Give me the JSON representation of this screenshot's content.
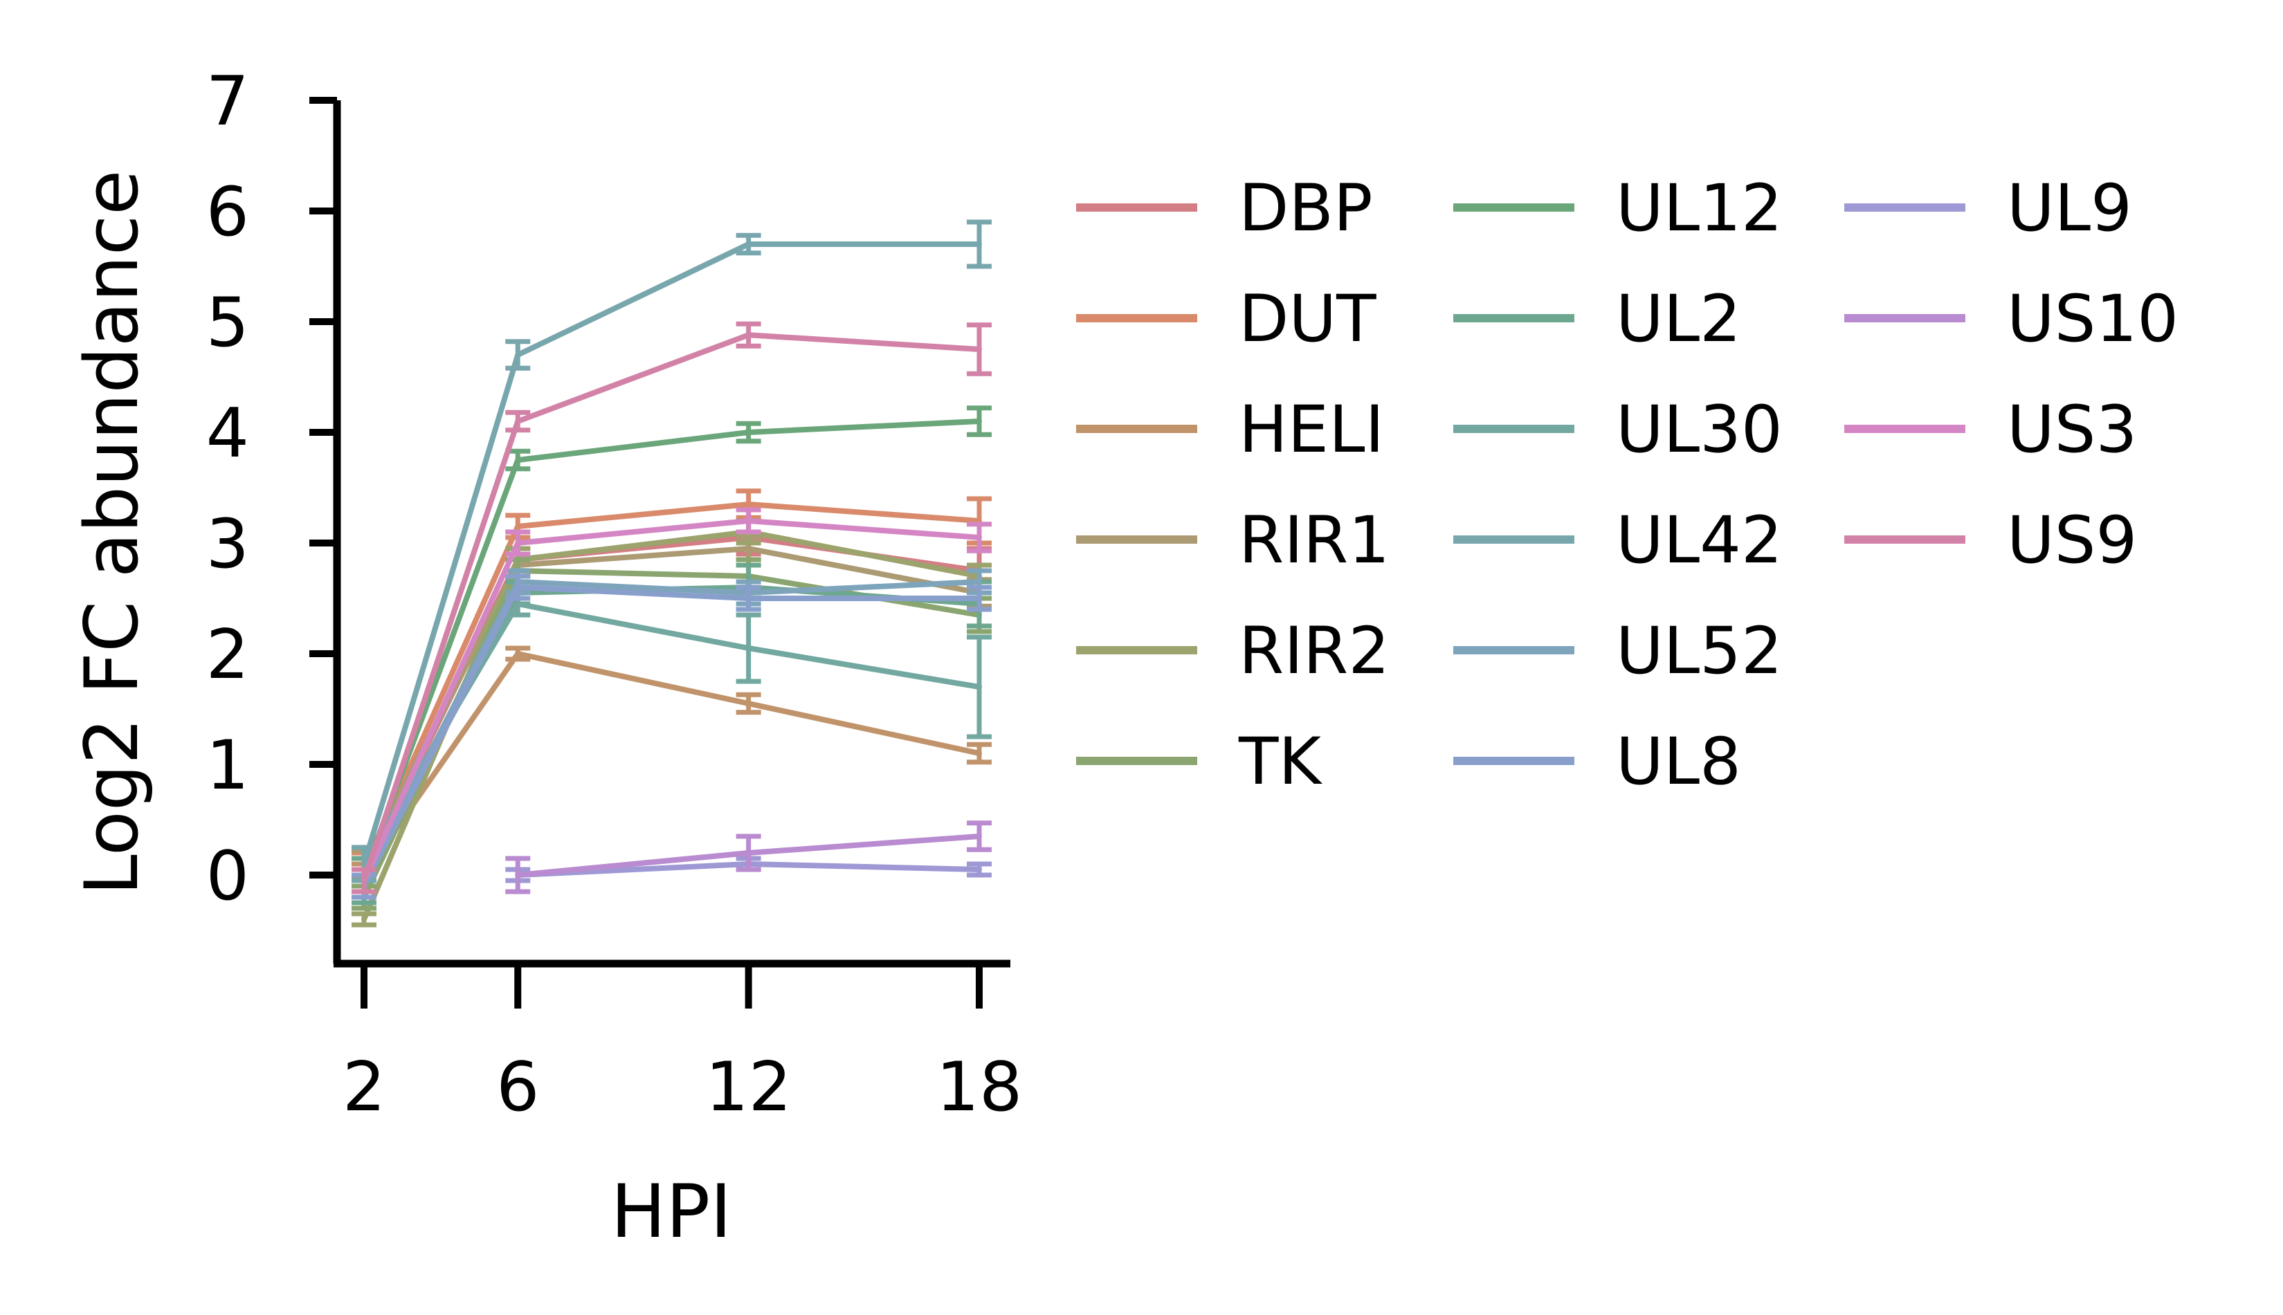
{
  "chart_data": {
    "type": "line",
    "title": "",
    "xlabel": "HPI",
    "ylabel": "Log2 FC abundance",
    "x": [
      2,
      6,
      12,
      18
    ],
    "x_ticks": [
      "2",
      "6",
      "12",
      "18"
    ],
    "y_ticks": [
      "0",
      "1",
      "2",
      "3",
      "4",
      "5",
      "6",
      "7"
    ],
    "xlim": [
      1.5,
      18.8
    ],
    "ylim": [
      -0.8,
      7
    ],
    "grid": false,
    "error_bars": true,
    "legend_placement": "right, outside, 3 columns",
    "series": [
      {
        "name": "DBP",
        "color": "#d37e85",
        "values": [
          0.0,
          2.85,
          3.05,
          2.75
        ],
        "err": [
          0.2,
          0.1,
          0.15,
          0.2
        ]
      },
      {
        "name": "DUT",
        "color": "#d98a6a",
        "values": [
          0.05,
          3.15,
          3.35,
          3.2
        ],
        "err": [
          0.15,
          0.1,
          0.12,
          0.2
        ]
      },
      {
        "name": "HELI",
        "color": "#c0936a",
        "values": [
          0.0,
          2.0,
          1.55,
          1.1
        ],
        "err": [
          0.1,
          0.05,
          0.08,
          0.08
        ]
      },
      {
        "name": "RIR1",
        "color": "#ab9a72",
        "values": [
          0.1,
          2.8,
          2.95,
          2.55
        ],
        "err": [
          0.12,
          0.1,
          0.1,
          0.12
        ]
      },
      {
        "name": "RIR2",
        "color": "#9ca36c",
        "values": [
          -0.4,
          2.85,
          3.1,
          2.7
        ],
        "err": [
          0.05,
          0.1,
          0.1,
          0.1
        ]
      },
      {
        "name": "TK",
        "color": "#8aa56f",
        "values": [
          -0.2,
          2.75,
          2.7,
          2.35
        ],
        "err": [
          0.1,
          0.1,
          0.15,
          0.15
        ]
      },
      {
        "name": "UL12",
        "color": "#6aa67a",
        "values": [
          0.0,
          3.75,
          4.0,
          4.1
        ],
        "err": [
          0.15,
          0.08,
          0.08,
          0.12
        ]
      },
      {
        "name": "UL2",
        "color": "#6ea78f",
        "values": [
          -0.05,
          2.55,
          2.6,
          2.45
        ],
        "err": [
          0.2,
          0.1,
          0.2,
          0.2
        ]
      },
      {
        "name": "UL30",
        "color": "#72a8a0",
        "values": [
          0.1,
          2.45,
          2.05,
          1.7
        ],
        "err": [
          0.15,
          0.1,
          0.3,
          0.45
        ]
      },
      {
        "name": "UL42",
        "color": "#78a6ad",
        "values": [
          0.1,
          4.7,
          5.7,
          5.7
        ],
        "err": [
          0.15,
          0.12,
          0.08,
          0.2
        ]
      },
      {
        "name": "UL52",
        "color": "#7ea4bc",
        "values": [
          -0.05,
          2.65,
          2.55,
          2.65
        ],
        "err": [
          0.1,
          0.1,
          0.1,
          0.1
        ]
      },
      {
        "name": "UL8",
        "color": "#889fcc",
        "values": [
          -0.1,
          2.6,
          2.5,
          2.5
        ],
        "err": [
          0.1,
          0.1,
          0.1,
          0.1
        ]
      },
      {
        "name": "UL9",
        "color": "#9e99d4",
        "values": [
          null,
          0.0,
          0.1,
          0.05
        ],
        "err": [
          0,
          0.05,
          0.05,
          0.05
        ]
      },
      {
        "name": "US10",
        "color": "#b98bd0",
        "values": [
          null,
          0.0,
          0.2,
          0.35
        ],
        "err": [
          0,
          0.15,
          0.15,
          0.12
        ]
      },
      {
        "name": "US3",
        "color": "#d486c4",
        "values": [
          -0.05,
          3.0,
          3.2,
          3.05
        ],
        "err": [
          0.1,
          0.1,
          0.1,
          0.12
        ]
      },
      {
        "name": "US9",
        "color": "#d282a6",
        "values": [
          -0.05,
          4.1,
          4.88,
          4.75
        ],
        "err": [
          0.1,
          0.08,
          0.1,
          0.22
        ]
      }
    ]
  }
}
